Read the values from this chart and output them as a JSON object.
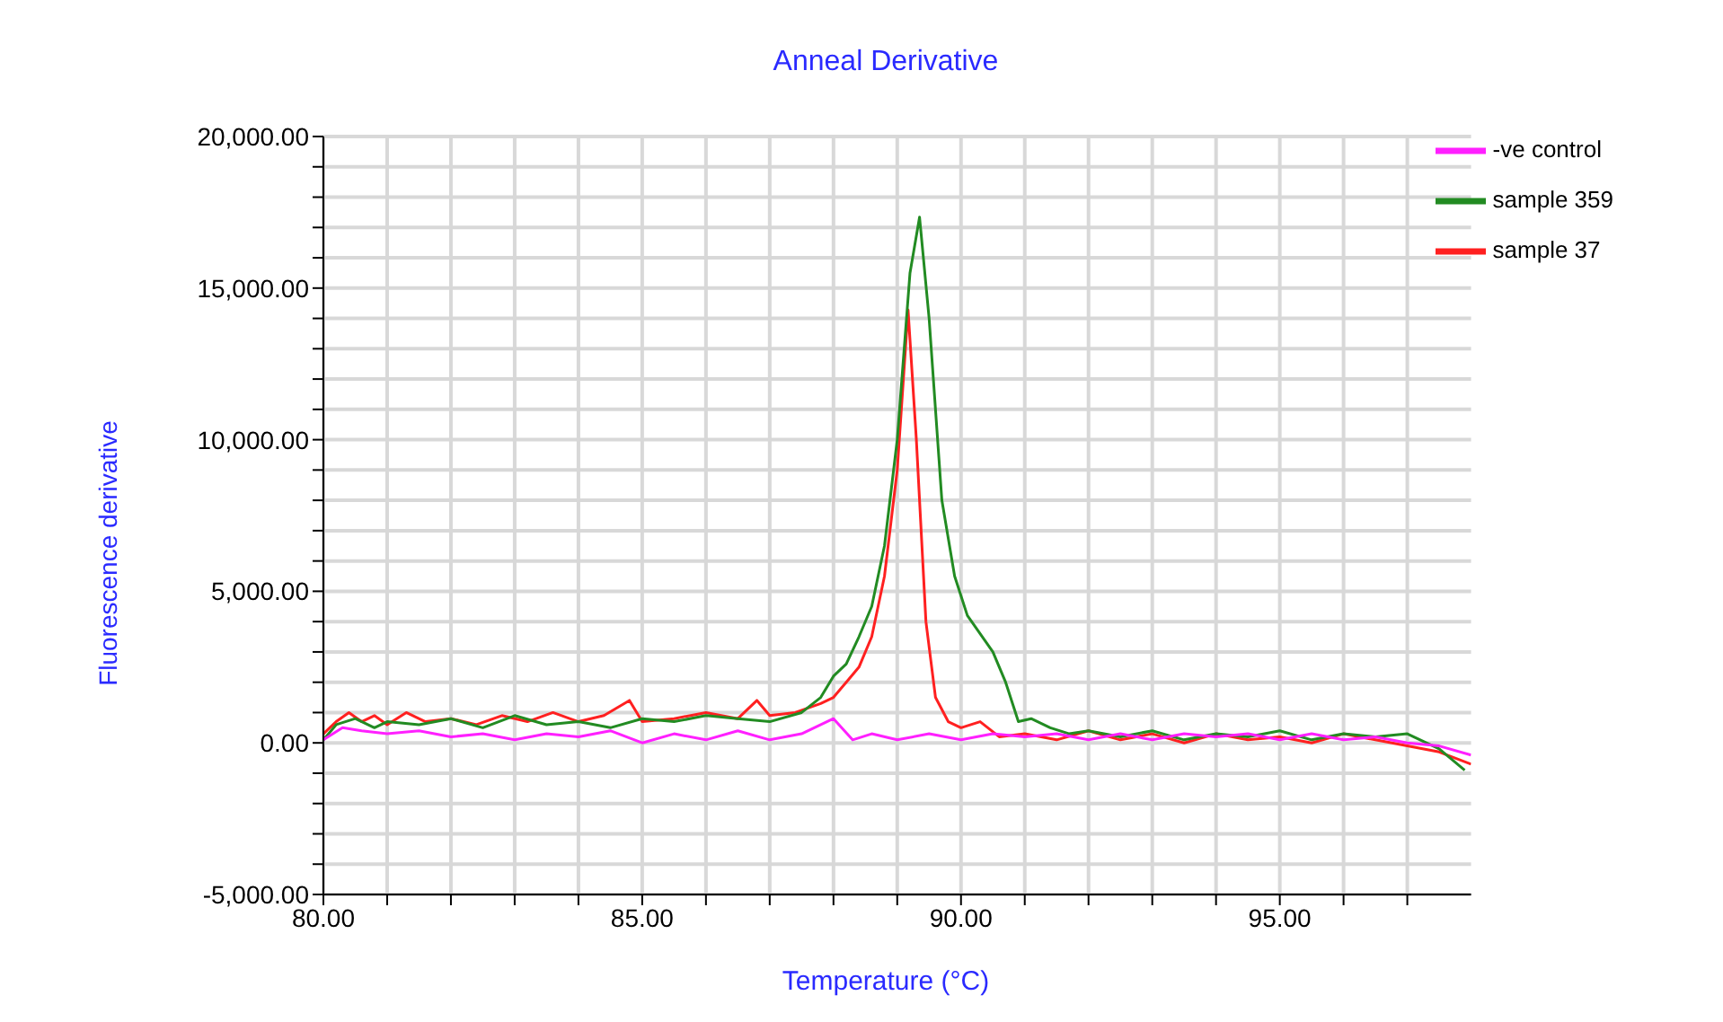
{
  "chart_data": {
    "type": "line",
    "title": "Anneal Derivative",
    "xlabel": "Temperature (°C)",
    "ylabel": "Fluorescence derivative",
    "xlim": [
      80,
      98
    ],
    "ylim": [
      -5000,
      20000
    ],
    "xticks": [
      {
        "value": 80,
        "label": "80.00"
      },
      {
        "value": 81,
        "label": null
      },
      {
        "value": 82,
        "label": null
      },
      {
        "value": 83,
        "label": null
      },
      {
        "value": 84,
        "label": null
      },
      {
        "value": 85,
        "label": "85.00"
      },
      {
        "value": 86,
        "label": null
      },
      {
        "value": 87,
        "label": null
      },
      {
        "value": 88,
        "label": null
      },
      {
        "value": 89,
        "label": null
      },
      {
        "value": 90,
        "label": "90.00"
      },
      {
        "value": 91,
        "label": null
      },
      {
        "value": 92,
        "label": null
      },
      {
        "value": 93,
        "label": null
      },
      {
        "value": 94,
        "label": null
      },
      {
        "value": 95,
        "label": "95.00"
      },
      {
        "value": 96,
        "label": null
      },
      {
        "value": 97,
        "label": null
      }
    ],
    "yticks": [
      {
        "value": -5000,
        "label": "-5,000.00"
      },
      {
        "value": -4000,
        "label": null
      },
      {
        "value": -3000,
        "label": null
      },
      {
        "value": -2000,
        "label": null
      },
      {
        "value": -1000,
        "label": null
      },
      {
        "value": 0,
        "label": "0.00"
      },
      {
        "value": 1000,
        "label": null
      },
      {
        "value": 2000,
        "label": null
      },
      {
        "value": 3000,
        "label": null
      },
      {
        "value": 4000,
        "label": null
      },
      {
        "value": 5000,
        "label": "5,000.00"
      },
      {
        "value": 6000,
        "label": null
      },
      {
        "value": 7000,
        "label": null
      },
      {
        "value": 8000,
        "label": null
      },
      {
        "value": 9000,
        "label": null
      },
      {
        "value": 10000,
        "label": "10,000.00"
      },
      {
        "value": 11000,
        "label": null
      },
      {
        "value": 12000,
        "label": null
      },
      {
        "value": 13000,
        "label": null
      },
      {
        "value": 14000,
        "label": null
      },
      {
        "value": 15000,
        "label": "15,000.00"
      },
      {
        "value": 16000,
        "label": null
      },
      {
        "value": 17000,
        "label": null
      },
      {
        "value": 18000,
        "label": null
      },
      {
        "value": 19000,
        "label": null
      },
      {
        "value": 20000,
        "label": "20,000.00"
      }
    ],
    "grid": true,
    "legend": "top right",
    "marker": "none",
    "line_style": "solid",
    "series": [
      {
        "name": "sample 37",
        "color": "#ff2020",
        "x": [
          80,
          80.2,
          80.4,
          80.6,
          80.8,
          81,
          81.3,
          81.6,
          82,
          82.4,
          82.8,
          83.2,
          83.6,
          84,
          84.4,
          84.8,
          85,
          85.5,
          86,
          86.5,
          86.8,
          87,
          87.4,
          87.8,
          88,
          88.2,
          88.4,
          88.6,
          88.8,
          89,
          89.17,
          89.3,
          89.45,
          89.6,
          89.8,
          90,
          90.3,
          90.6,
          91,
          91.5,
          92,
          92.5,
          93,
          93.5,
          94,
          94.5,
          95,
          95.5,
          96,
          96.5,
          97,
          97.5,
          98
        ],
        "values": [
          300,
          700,
          1000,
          700,
          900,
          600,
          1000,
          700,
          800,
          600,
          900,
          700,
          1000,
          700,
          900,
          1400,
          700,
          800,
          1000,
          800,
          1400,
          900,
          1000,
          1300,
          1500,
          2000,
          2500,
          3500,
          5500,
          9000,
          14280,
          10000,
          4000,
          1500,
          700,
          500,
          700,
          200,
          300,
          100,
          400,
          100,
          300,
          0,
          300,
          100,
          200,
          0,
          300,
          100,
          -100,
          -300,
          -700
        ]
      },
      {
        "name": "sample 359",
        "color": "#228b22",
        "x": [
          80,
          80.2,
          80.5,
          80.8,
          81,
          81.5,
          82,
          82.5,
          83,
          83.5,
          84,
          84.5,
          85,
          85.5,
          86,
          86.5,
          87,
          87.5,
          87.8,
          88,
          88.2,
          88.4,
          88.6,
          88.8,
          89,
          89.2,
          89.35,
          89.5,
          89.7,
          89.9,
          90.1,
          90.3,
          90.5,
          90.7,
          90.9,
          91.1,
          91.4,
          91.7,
          92,
          92.5,
          93,
          93.5,
          94,
          94.5,
          95,
          95.5,
          96,
          96.5,
          97,
          97.5,
          97.9
        ],
        "values": [
          100,
          600,
          800,
          500,
          700,
          600,
          800,
          500,
          900,
          600,
          700,
          500,
          800,
          700,
          900,
          800,
          700,
          1000,
          1500,
          2200,
          2600,
          3500,
          4500,
          6500,
          10000,
          15500,
          17340,
          14000,
          8000,
          5500,
          4200,
          3600,
          3000,
          2000,
          700,
          800,
          500,
          300,
          400,
          200,
          400,
          100,
          300,
          200,
          400,
          100,
          300,
          200,
          300,
          -200,
          -900
        ]
      },
      {
        "name": "-ve control",
        "color": "#ff20ff",
        "x": [
          80,
          80.3,
          80.6,
          81,
          81.5,
          82,
          82.5,
          83,
          83.5,
          84,
          84.5,
          85,
          85.5,
          86,
          86.5,
          87,
          87.5,
          88,
          88.3,
          88.6,
          89,
          89.5,
          90,
          90.5,
          91,
          91.5,
          92,
          92.5,
          93,
          93.5,
          94,
          94.5,
          95,
          95.5,
          96,
          96.5,
          97,
          97.5,
          98
        ],
        "values": [
          100,
          500,
          400,
          300,
          400,
          200,
          300,
          100,
          300,
          200,
          400,
          0,
          300,
          100,
          400,
          100,
          300,
          800,
          100,
          300,
          100,
          300,
          100,
          300,
          200,
          300,
          100,
          300,
          100,
          300,
          200,
          300,
          100,
          300,
          100,
          200,
          0,
          -100,
          -400
        ]
      }
    ]
  }
}
